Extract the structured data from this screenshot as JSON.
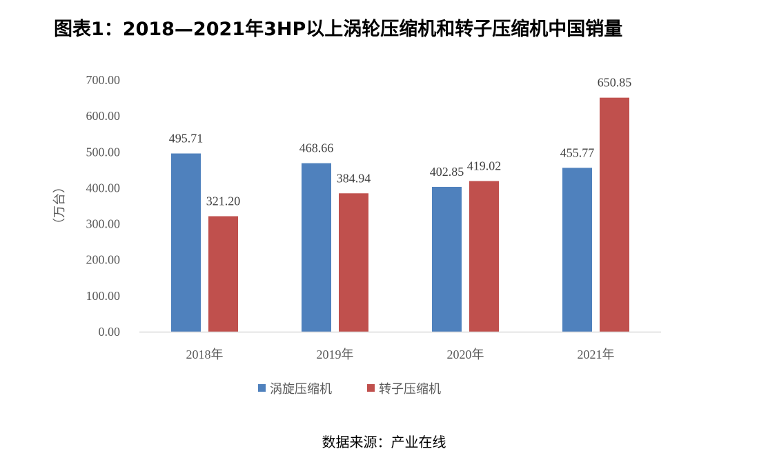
{
  "title": "图表1：2018—2021年3HP以上涡轮压缩机和转子压缩机中国销量",
  "source": "数据来源：产业在线",
  "colors": {
    "series1": "#4F81BD",
    "series2": "#C0504D",
    "axis": "#D9D9D9",
    "text": "#595959"
  },
  "chart_data": {
    "type": "bar",
    "title": "2018—2021年3HP以上涡轮压缩机和转子压缩机中国销量",
    "xlabel": "",
    "ylabel": "（万台）",
    "ylim": [
      0,
      700
    ],
    "yticks": [
      0,
      100,
      200,
      300,
      400,
      500,
      600,
      700
    ],
    "ytick_labels": [
      "0.00",
      "100.00",
      "200.00",
      "300.00",
      "400.00",
      "500.00",
      "600.00",
      "700.00"
    ],
    "categories": [
      "2018年",
      "2019年",
      "2020年",
      "2021年"
    ],
    "series": [
      {
        "name": "涡旋压缩机",
        "values": [
          495.71,
          468.66,
          402.85,
          455.77
        ],
        "labels": [
          "495.71",
          "468.66",
          "402.85",
          "455.77"
        ]
      },
      {
        "name": "转子压缩机",
        "values": [
          321.2,
          384.94,
          419.02,
          650.85
        ],
        "labels": [
          "321.20",
          "384.94",
          "419.02",
          "650.85"
        ]
      }
    ],
    "legend": "bottom",
    "grid": false
  }
}
